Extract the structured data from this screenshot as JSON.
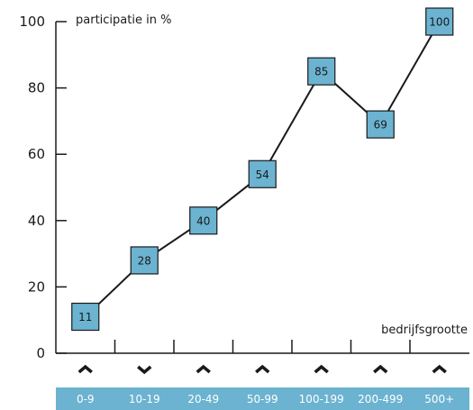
{
  "colors": {
    "marker_fill": "#6bb3d0",
    "category_band": "#6bb3d0",
    "line": "#1a1a1a",
    "text": "#1a1a1a",
    "category_text": "#ffffff"
  },
  "chart_data": {
    "type": "line",
    "categories": [
      "0-9",
      "10-19",
      "20-49",
      "50-99",
      "100-199",
      "200-499",
      "500+"
    ],
    "values": [
      11,
      28,
      40,
      54,
      85,
      69,
      100
    ],
    "data_labels": [
      "11",
      "28",
      "40",
      "54",
      "85",
      "69",
      "100"
    ],
    "arrows": [
      "up",
      "down",
      "up",
      "up",
      "up",
      "up",
      "up"
    ],
    "ylabel": "participatie in %",
    "xlabel": "bedrijfsgrootte",
    "ylim": [
      0,
      100
    ],
    "yticks": [
      0,
      20,
      40,
      60,
      80,
      100
    ],
    "ytick_labels": [
      "0",
      "20",
      "40",
      "60",
      "80",
      "100"
    ],
    "grid": false,
    "marker": "square"
  }
}
